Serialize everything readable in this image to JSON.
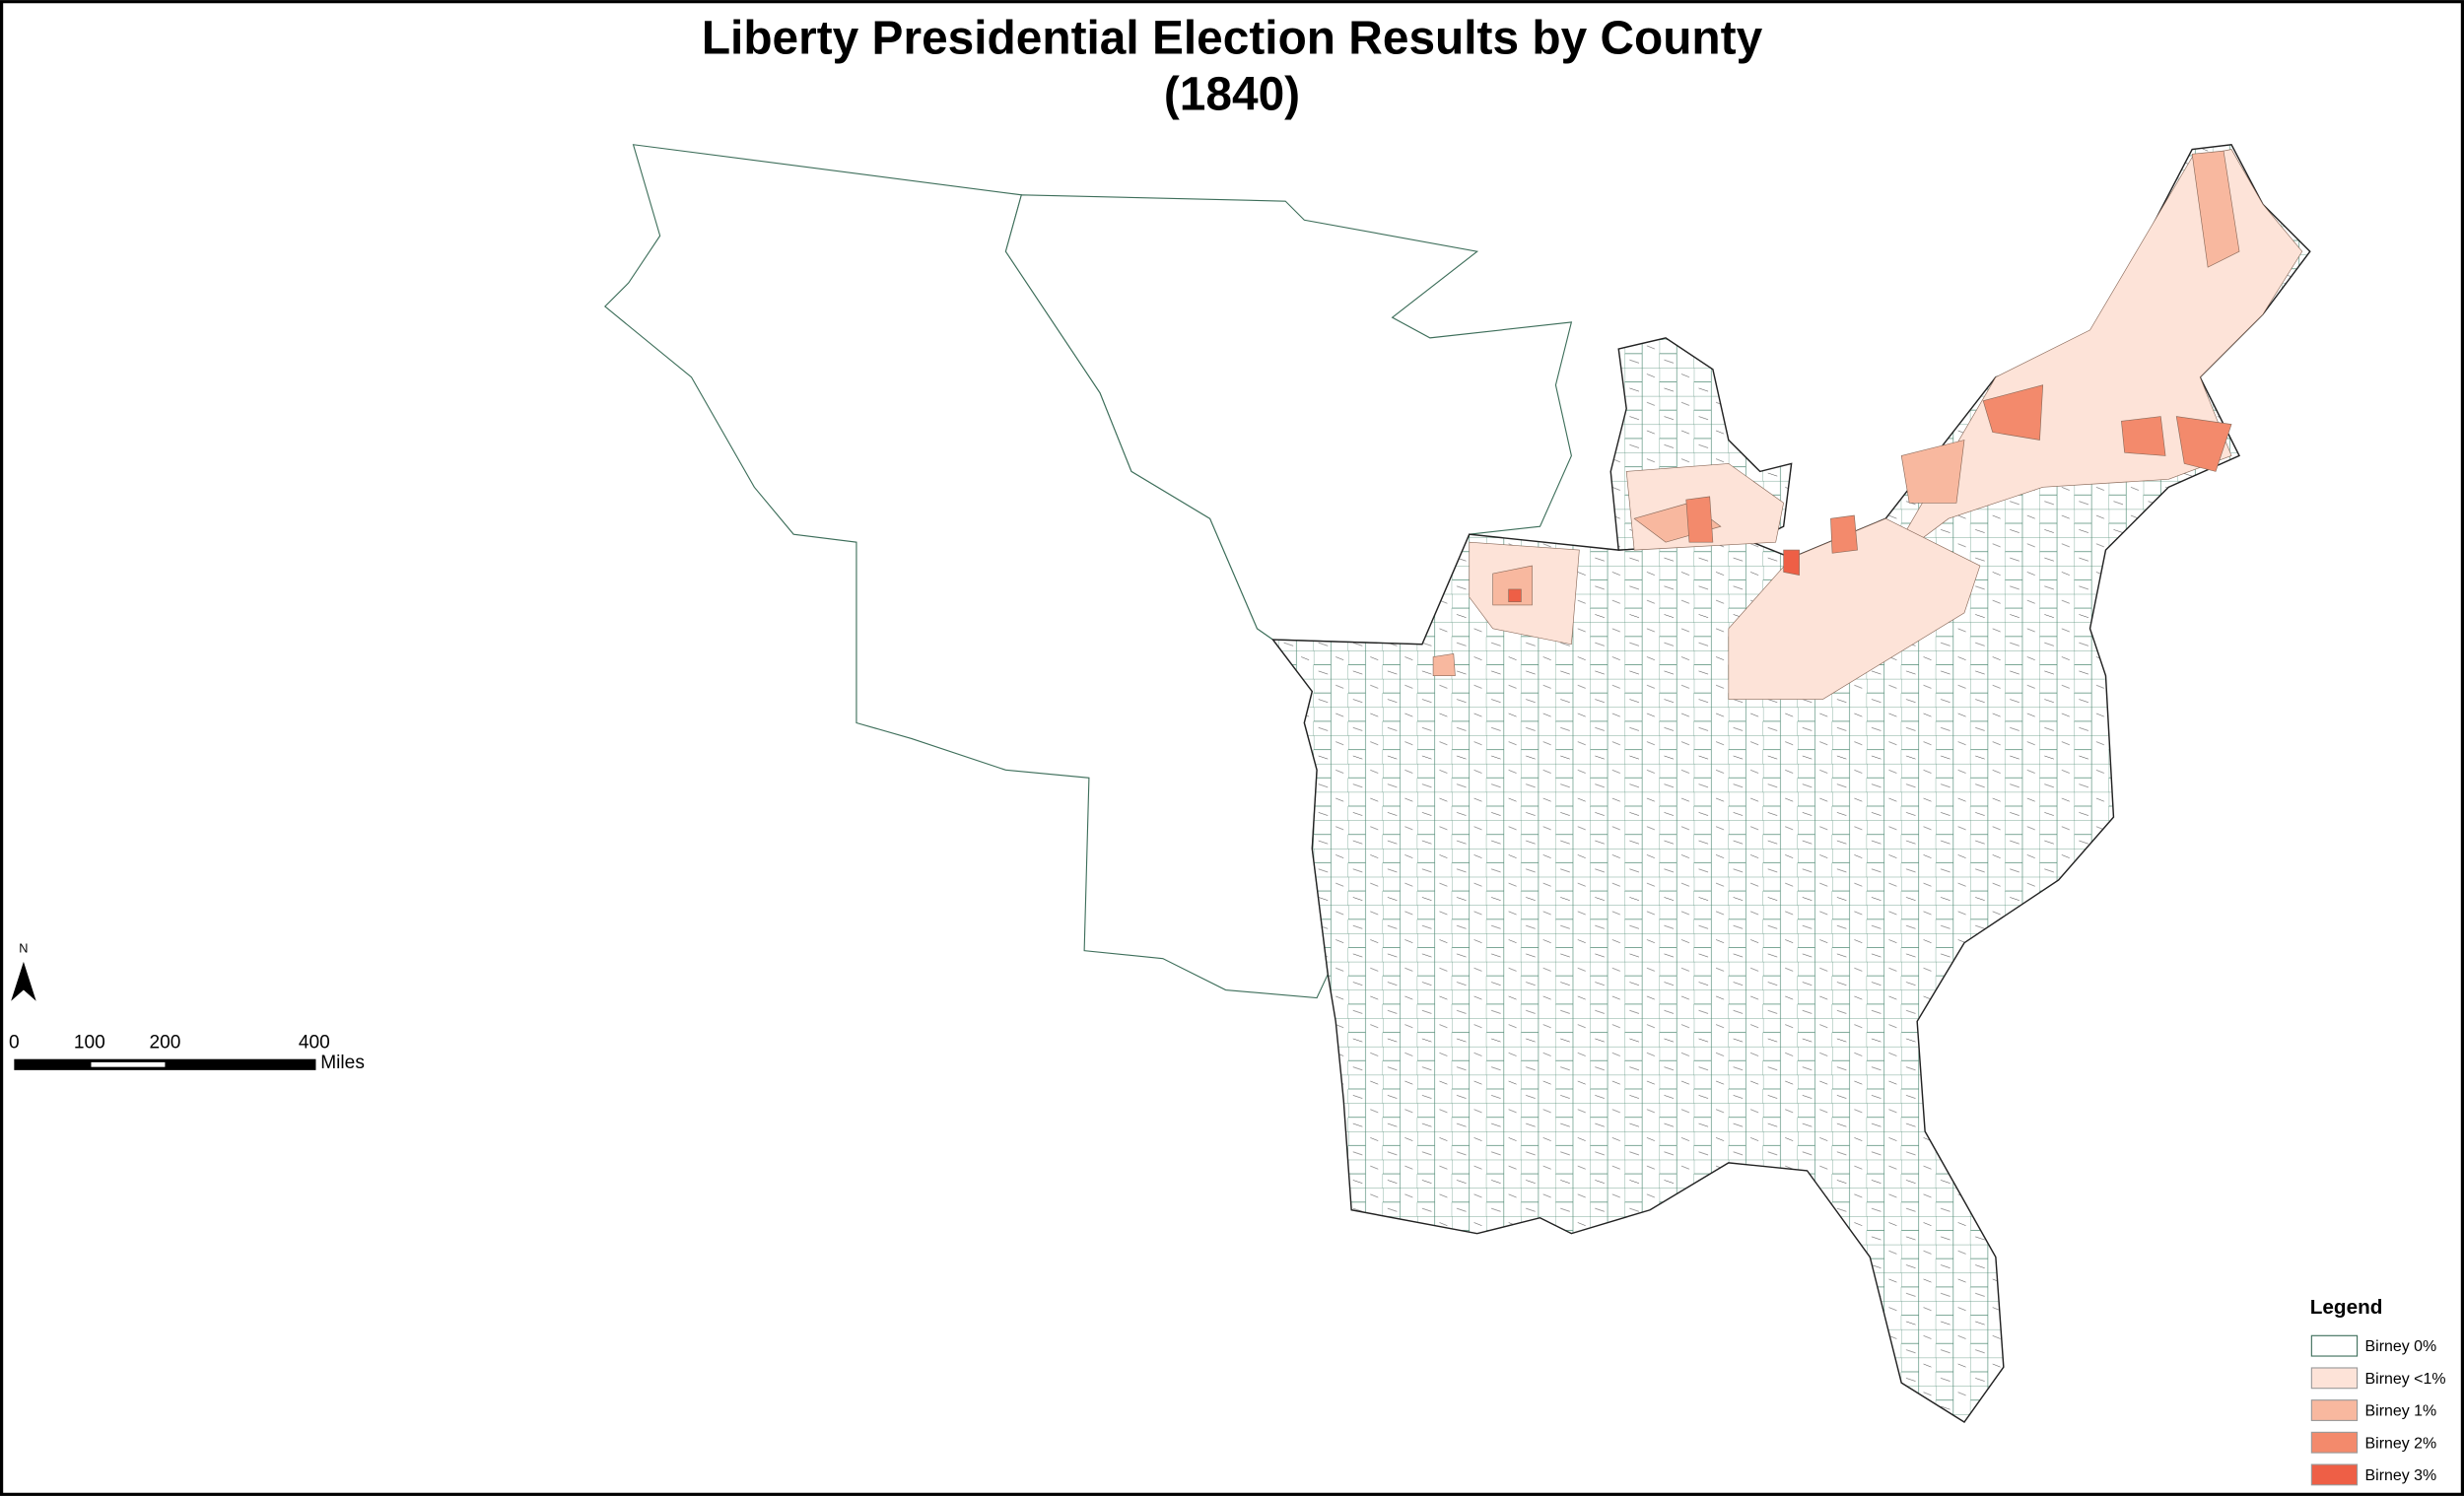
{
  "title": "Liberty Presidential Election Results by County",
  "subtitle": "(1840)",
  "north_arrow": {
    "label": "N"
  },
  "scale_bar": {
    "ticks": [
      "0",
      "100",
      "200",
      "400"
    ],
    "unit": "Miles"
  },
  "legend": {
    "title": "Legend",
    "items": [
      {
        "label": "Birney 0%",
        "color": "#ffffff"
      },
      {
        "label": "Birney <1%",
        "color": "#fde3d8"
      },
      {
        "label": "Birney 1%",
        "color": "#f8b89f"
      },
      {
        "label": "Birney 2%",
        "color": "#f38a6c"
      },
      {
        "label": "Birney 3%",
        "color": "#ee5f46"
      }
    ]
  }
}
